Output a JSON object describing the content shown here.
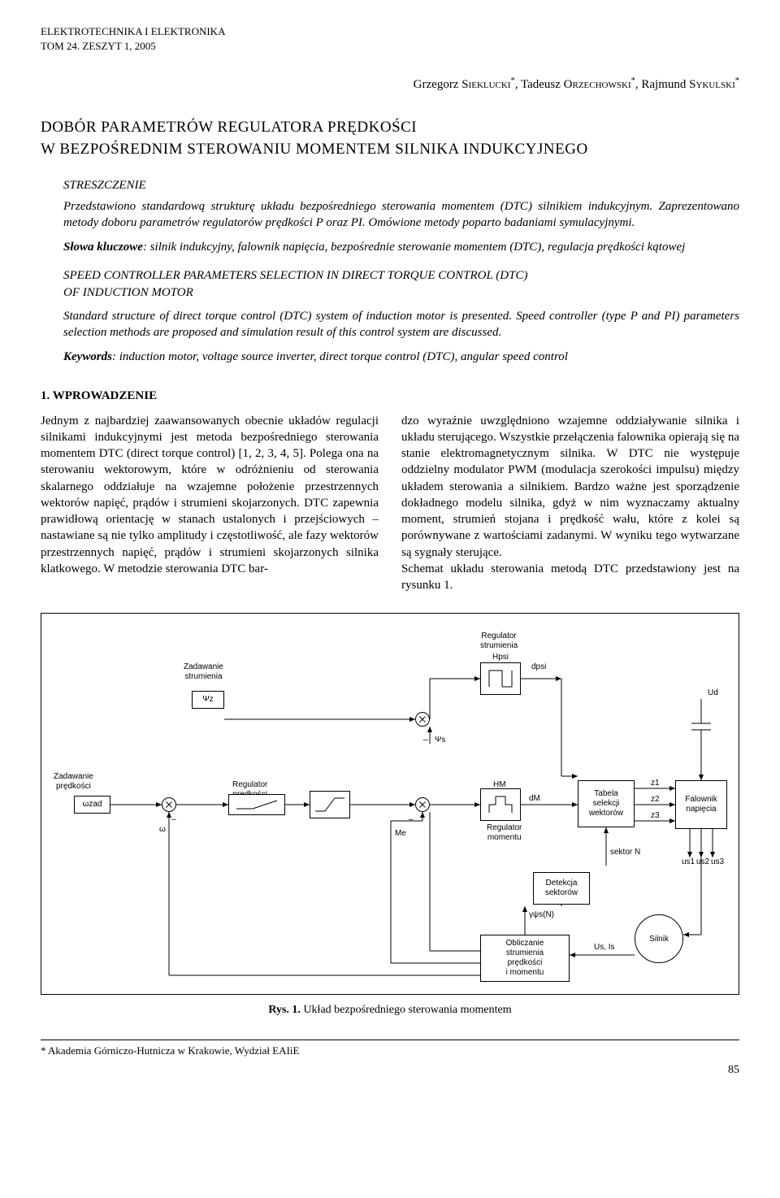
{
  "journal": {
    "line1": "ELEKTROTECHNIKA I ELEKTRONIKA",
    "line2": "TOM 24. ZESZYT 1, 2005"
  },
  "authors_html": "Grzegorz SIEKLUCKI *, Tadeusz ORZECHOWSKI *, Rajmund SYKULSKI *",
  "authors": {
    "a1_first": "Grzegorz ",
    "a1_last": "Sieklucki",
    "a2_first": "Tadeusz ",
    "a2_last": "Orzechowski",
    "a3_first": "Rajmund ",
    "a3_last": "Sykulski",
    "star": "*"
  },
  "title_pl_line1": "DOBÓR PARAMETRÓW REGULATORA PRĘDKOŚCI",
  "title_pl_line2": "W BEZPOŚREDNIM STEROWANIU MOMENTEM SILNIKA INDUKCYJNEGO",
  "abstract_pl": {
    "label": "STRESZCZENIE",
    "p1": "Przedstawiono standardową strukturę układu bezpośredniego sterowania momentem (DTC) silnikiem indukcyjnym. Zaprezentowano metody doboru parametrów regulatorów prędkości P oraz PI. Omówione metody poparto badaniami symulacyjnymi.",
    "kw_label": "Słowa kluczowe",
    "kw": ": silnik indukcyjny, falownik napięcia, bezpośrednie sterowanie momentem (DTC), regulacja prędkości kątowej"
  },
  "en": {
    "title1": "SPEED CONTROLLER PARAMETERS SELECTION IN DIRECT TORQUE CONTROL (DTC)",
    "title2": "OF INDUCTION MOTOR",
    "p1": "Standard structure of direct torque control (DTC) system of induction motor is presented. Speed controller (type P and PI) parameters selection methods are proposed and simulation result of this control system are discussed.",
    "kw_label": "Keywords",
    "kw": ": induction motor, voltage source inverter, direct torque control (DTC), angular speed control"
  },
  "section1_head": "1. WPROWADZENIE",
  "col_left": "Jednym z najbardziej zaawansowanych obecnie układów regulacji silnikami indukcyjnymi jest metoda bezpośredniego sterowania momentem DTC (direct torque control) [1, 2, 3, 4, 5]. Polega ona na sterowaniu wektorowym, które w odróżnieniu od sterowania skalarnego oddziałuje na wzajemne położenie przestrzennych wektorów napięć, prądów i strumieni skojarzonych. DTC zapewnia prawidłową orientację w stanach ustalonych i przejściowych – nastawiane są nie tylko amplitudy i częstotliwość, ale fazy wektorów przestrzennych napięć, prądów i strumieni skojarzonych silnika klatkowego. W metodzie sterowania DTC bar-",
  "col_right": "dzo wyraźnie uwzględniono wzajemne oddziaływanie silnika i układu sterującego. Wszystkie przełączenia falownika opierają się na stanie elektromagnetycznym silnika. W DTC nie występuje oddzielny modulator PWM (modulacja szerokości impulsu) między układem sterowania a silnikiem. Bardzo ważne jest sporządzenie dokładnego modelu silnika, gdyż w nim wyznaczamy aktualny moment, strumień stojana i prędkość wału, które z kolei są porównywane z wartościami zadanymi. W wyniku tego wytwarzane są sygnały sterujące.\n   Schemat układu sterowania metodą DTC przedstawiony jest na rysunku 1.",
  "diagram": {
    "labels": {
      "zad_strum": "Zadawanie\nstrumienia",
      "psi_z": "Ψz",
      "zad_pred": "Zadawanie\nprędkości",
      "omega_zad": "ωzad",
      "omega": "ω",
      "reg_pred": "Regulator\nprędkości",
      "psi_s": "Ψs",
      "me": "Me",
      "reg_strum": "Regulator\nstrumienia",
      "hpsi": "Hpsi",
      "dpsi": "dpsi",
      "hm": "HM",
      "dm": "dM",
      "reg_mom": "Regulator\nmomentu",
      "tabela": "Tabela\nselekcji\nwektorów",
      "z1": "z1",
      "z2": "z2",
      "z3": "z3",
      "falownik": "Falownik\nnapięcia",
      "ud": "Ud",
      "us1": "us1",
      "us2": "us2",
      "us3": "us3",
      "sektor": "sektor N",
      "detekcja": "Detekcja\nsektorów",
      "gamma": "γψs(N)",
      "oblicz": "Obliczanie\nstrumienia\nprędkości\ni momentu",
      "usis": "Us, Is",
      "silnik": "Silnik",
      "minus": "–"
    },
    "caption_bold": "Rys. 1.",
    "caption_rest": " Układ bezpośredniego sterowania momentem"
  },
  "footnote": "*  Akademia Górniczo-Hutnicza w Krakowie, Wydział EAIiE",
  "page_number": "85"
}
